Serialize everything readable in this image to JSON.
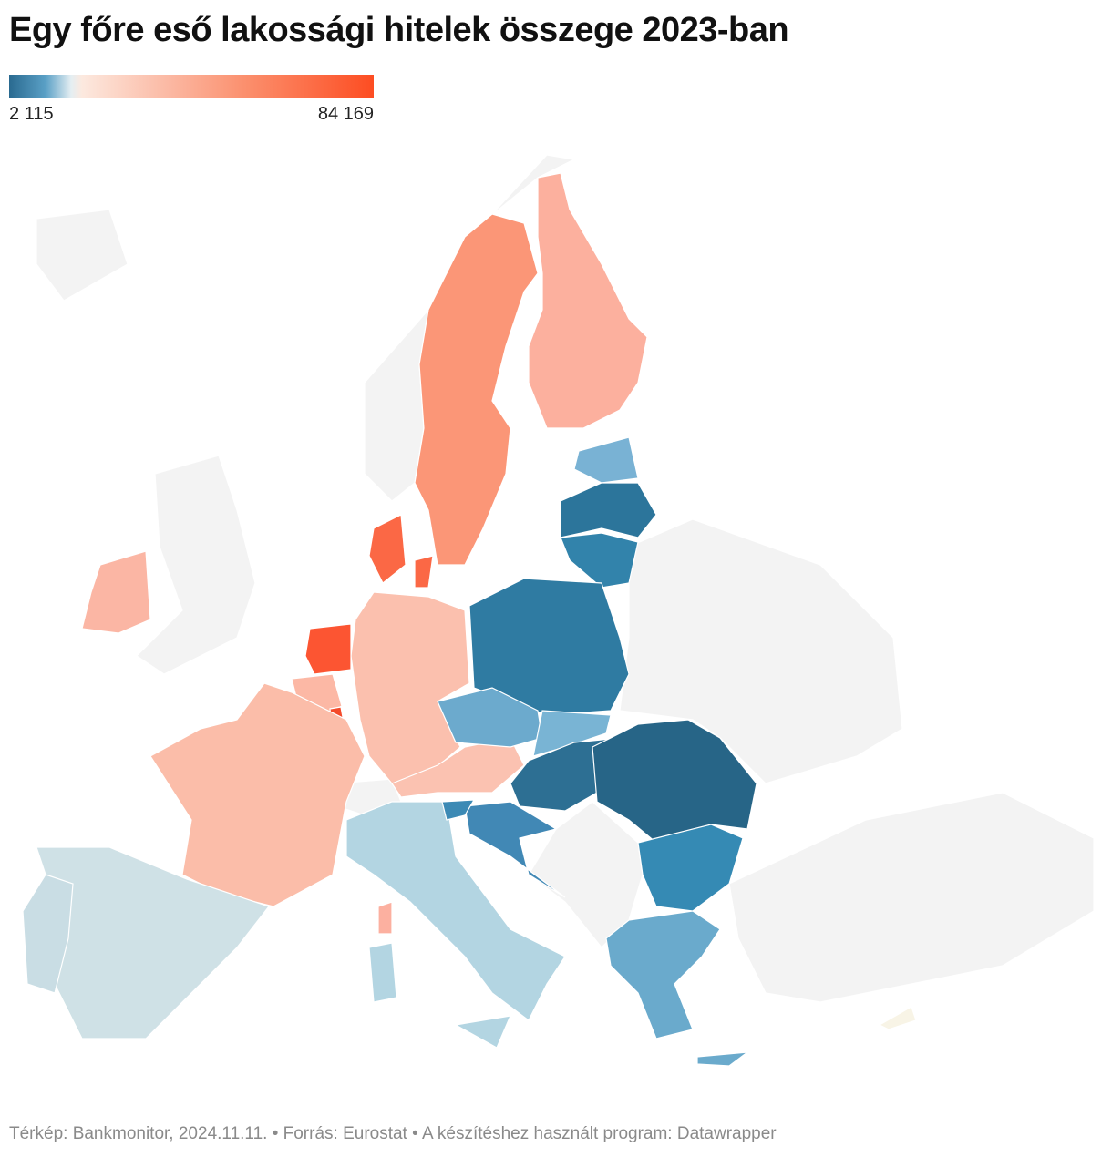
{
  "title": "Egy főre eső lakossági hitelek összege 2023-ban",
  "legend": {
    "min": {
      "value": 2115,
      "label": "2 115"
    },
    "max": {
      "value": 84169,
      "label": "84 169"
    }
  },
  "footer": "Térkép: Bankmonitor, 2024.11.11. • Forrás: Eurostat • A készítéshez használt program: Datawrapper"
}
